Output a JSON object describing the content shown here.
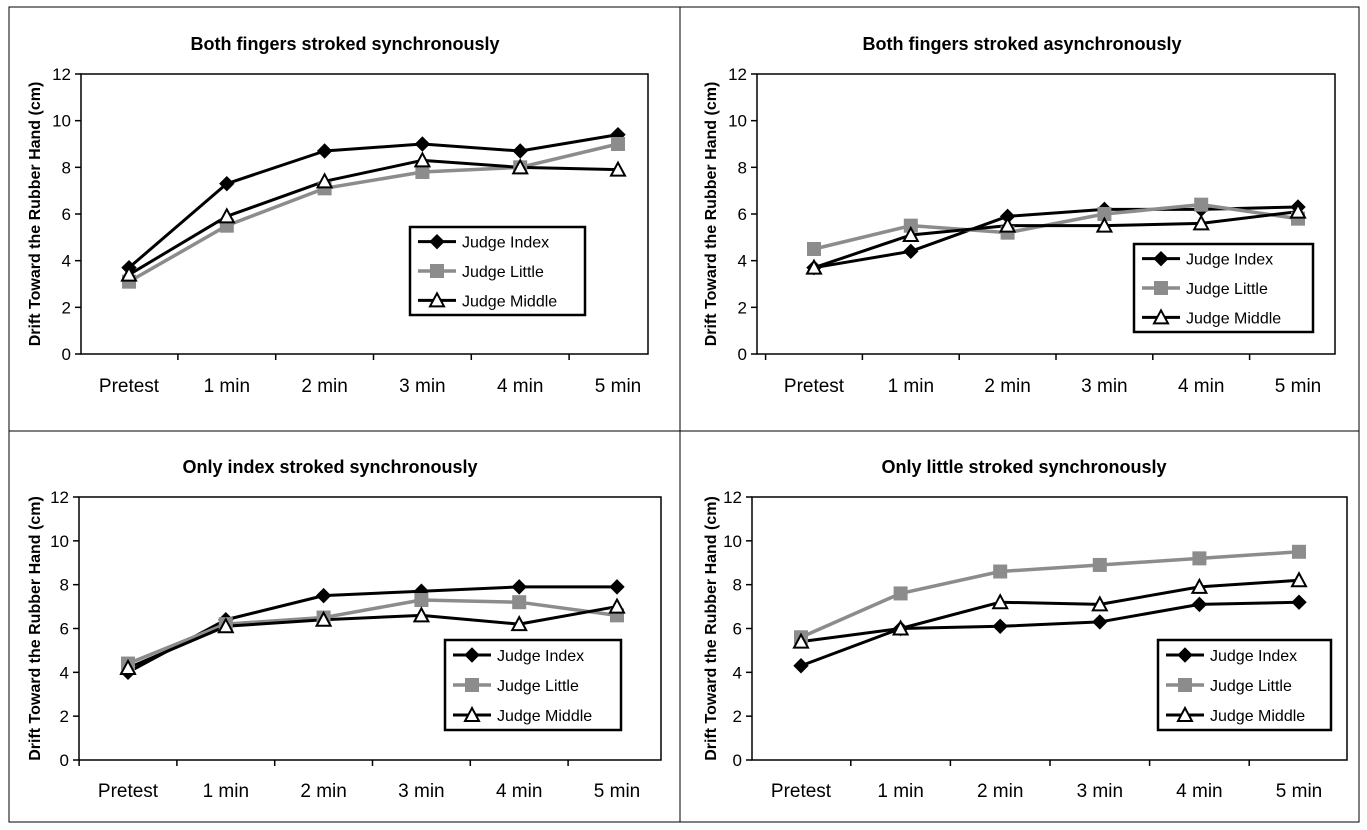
{
  "chart_data": [
    {
      "type": "line",
      "title": "Both fingers stroked synchronously",
      "ylabel": "Drift Toward the Rubber Hand (cm)",
      "xlabel": "",
      "categories": [
        "Pretest",
        "1 min",
        "2 min",
        "3 min",
        "4 min",
        "5 min"
      ],
      "ylim": [
        0,
        12
      ],
      "yticks": [
        "0",
        "2",
        "4",
        "6",
        "8",
        "10",
        "12"
      ],
      "legend_position": "right",
      "series": [
        {
          "name": "Judge Index",
          "color": "#000000",
          "marker": "diamond",
          "values": [
            3.7,
            7.3,
            8.7,
            9.0,
            8.7,
            9.4
          ]
        },
        {
          "name": "Judge Little",
          "color": "#8c8c8c",
          "marker": "square",
          "values": [
            3.1,
            5.5,
            7.1,
            7.8,
            8.0,
            9.0
          ]
        },
        {
          "name": "Judge Middle",
          "color": "#000000",
          "marker": "triangle-open",
          "values": [
            3.4,
            5.9,
            7.4,
            8.3,
            8.0,
            7.9
          ]
        }
      ]
    },
    {
      "type": "line",
      "title": "Both fingers stroked asynchronously",
      "ylabel": "Drift Toward the Rubber Hand (cm)",
      "xlabel": "",
      "categories": [
        "Pretest",
        "1 min",
        "2 min",
        "3 min",
        "4 min",
        "5 min"
      ],
      "ylim": [
        0,
        12
      ],
      "yticks": [
        "0",
        "2",
        "4",
        "6",
        "8",
        "10",
        "12"
      ],
      "legend_position": "lower-right",
      "series": [
        {
          "name": "Judge Index",
          "color": "#000000",
          "marker": "diamond",
          "values": [
            3.7,
            4.4,
            5.9,
            6.2,
            6.2,
            6.3
          ]
        },
        {
          "name": "Judge Little",
          "color": "#8c8c8c",
          "marker": "square",
          "values": [
            4.5,
            5.5,
            5.2,
            6.0,
            6.4,
            5.8
          ]
        },
        {
          "name": "Judge Middle",
          "color": "#000000",
          "marker": "triangle-open",
          "values": [
            3.7,
            5.1,
            5.5,
            5.5,
            5.6,
            6.1
          ]
        }
      ]
    },
    {
      "type": "line",
      "title": "Only index stroked synchronously",
      "ylabel": "Drift Toward the Rubber Hand (cm)",
      "xlabel": "",
      "categories": [
        "Pretest",
        "1 min",
        "2 min",
        "3 min",
        "4 min",
        "5 min"
      ],
      "ylim": [
        0,
        12
      ],
      "yticks": [
        "0",
        "2",
        "4",
        "6",
        "8",
        "10",
        "12"
      ],
      "legend_position": "lower-right",
      "series": [
        {
          "name": "Judge Index",
          "color": "#000000",
          "marker": "diamond",
          "values": [
            4.0,
            6.4,
            7.5,
            7.7,
            7.9,
            7.9
          ]
        },
        {
          "name": "Judge Little",
          "color": "#8c8c8c",
          "marker": "square",
          "values": [
            4.4,
            6.2,
            6.5,
            7.3,
            7.2,
            6.6
          ]
        },
        {
          "name": "Judge Middle",
          "color": "#000000",
          "marker": "triangle-open",
          "values": [
            4.2,
            6.1,
            6.4,
            6.6,
            6.2,
            7.0
          ]
        }
      ]
    },
    {
      "type": "line",
      "title": "Only little stroked synchronously",
      "ylabel": "Drift Toward the Rubber Hand (cm)",
      "xlabel": "",
      "categories": [
        "Pretest",
        "1 min",
        "2 min",
        "3 min",
        "4 min",
        "5 min"
      ],
      "ylim": [
        0,
        12
      ],
      "yticks": [
        "0",
        "2",
        "4",
        "6",
        "8",
        "10",
        "12"
      ],
      "legend_position": "lower-right",
      "series": [
        {
          "name": "Judge Index",
          "color": "#000000",
          "marker": "diamond",
          "values": [
            4.3,
            6.0,
            6.1,
            6.3,
            7.1,
            7.2
          ]
        },
        {
          "name": "Judge Little",
          "color": "#8c8c8c",
          "marker": "square",
          "values": [
            5.6,
            7.6,
            8.6,
            8.9,
            9.2,
            9.5
          ]
        },
        {
          "name": "Judge Middle",
          "color": "#000000",
          "marker": "triangle-open",
          "values": [
            5.4,
            6.0,
            7.2,
            7.1,
            7.9,
            8.2
          ]
        }
      ]
    }
  ]
}
